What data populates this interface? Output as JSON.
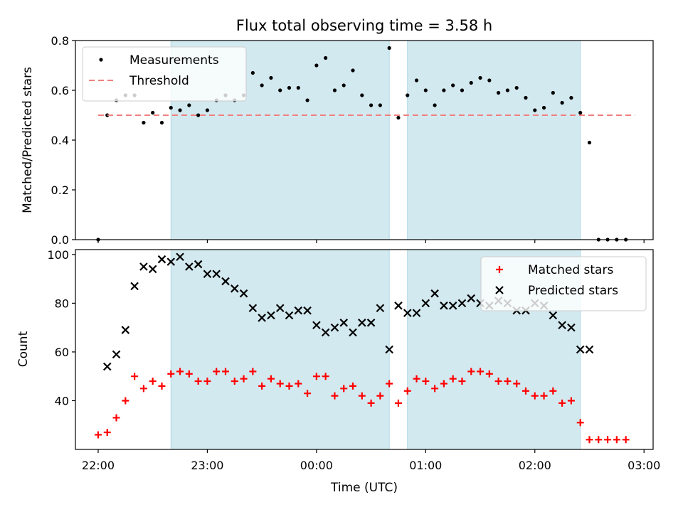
{
  "figure": {
    "title": "Flux total observing time = 3.58 h",
    "xlabel": "Time (UTC)",
    "xticks": [
      "22:00",
      "23:00",
      "00:00",
      "01:00",
      "02:00",
      "03:00"
    ]
  },
  "chart_data": [
    {
      "type": "scatter",
      "ylabel": "Matched/Predicted stars",
      "ylim": [
        0,
        0.8
      ],
      "yticks": [
        "0.0",
        "0.2",
        "0.4",
        "0.6",
        "0.8"
      ],
      "legend_placement": "top-left",
      "shaded_intervals": [
        [
          "22:40",
          "00:40"
        ],
        [
          "00:50",
          "02:25"
        ]
      ],
      "series": [
        {
          "name": "Measurements",
          "marker": "dot",
          "color": "#000000",
          "points": [
            [
              "22:00",
              0.0
            ],
            [
              "22:05",
              0.5
            ],
            [
              "22:10",
              0.56
            ],
            [
              "22:15",
              0.58
            ],
            [
              "22:20",
              0.58
            ],
            [
              "22:25",
              0.47
            ],
            [
              "22:30",
              0.51
            ],
            [
              "22:35",
              0.47
            ],
            [
              "22:40",
              0.53
            ],
            [
              "22:45",
              0.52
            ],
            [
              "22:50",
              0.54
            ],
            [
              "22:55",
              0.5
            ],
            [
              "23:00",
              0.52
            ],
            [
              "23:05",
              0.56
            ],
            [
              "23:10",
              0.58
            ],
            [
              "23:15",
              0.56
            ],
            [
              "23:20",
              0.58
            ],
            [
              "23:25",
              0.67
            ],
            [
              "23:30",
              0.62
            ],
            [
              "23:35",
              0.65
            ],
            [
              "23:40",
              0.6
            ],
            [
              "23:45",
              0.61
            ],
            [
              "23:50",
              0.61
            ],
            [
              "23:55",
              0.56
            ],
            [
              "00:00",
              0.7
            ],
            [
              "00:05",
              0.73
            ],
            [
              "00:10",
              0.6
            ],
            [
              "00:15",
              0.62
            ],
            [
              "00:20",
              0.68
            ],
            [
              "00:25",
              0.58
            ],
            [
              "00:30",
              0.54
            ],
            [
              "00:35",
              0.54
            ],
            [
              "00:40",
              0.77
            ],
            [
              "00:45",
              0.49
            ],
            [
              "00:50",
              0.58
            ],
            [
              "00:55",
              0.64
            ],
            [
              "01:00",
              0.6
            ],
            [
              "01:05",
              0.54
            ],
            [
              "01:10",
              0.6
            ],
            [
              "01:15",
              0.62
            ],
            [
              "01:20",
              0.6
            ],
            [
              "01:25",
              0.63
            ],
            [
              "01:30",
              0.65
            ],
            [
              "01:35",
              0.64
            ],
            [
              "01:40",
              0.59
            ],
            [
              "01:45",
              0.6
            ],
            [
              "01:50",
              0.61
            ],
            [
              "01:55",
              0.57
            ],
            [
              "02:00",
              0.52
            ],
            [
              "02:05",
              0.53
            ],
            [
              "02:10",
              0.59
            ],
            [
              "02:15",
              0.55
            ],
            [
              "02:20",
              0.57
            ],
            [
              "02:25",
              0.51
            ],
            [
              "02:30",
              0.39
            ],
            [
              "02:35",
              0.0
            ],
            [
              "02:40",
              0.0
            ],
            [
              "02:45",
              0.0
            ],
            [
              "02:50",
              0.0
            ]
          ]
        },
        {
          "name": "Threshold",
          "style": "dashed",
          "color": "#f08080",
          "value": 0.5,
          "x_range": [
            "22:00",
            "02:55"
          ]
        }
      ]
    },
    {
      "type": "scatter",
      "ylabel": "Count",
      "ylim": [
        20,
        102
      ],
      "yticks": [
        "40",
        "60",
        "80",
        "100"
      ],
      "legend_placement": "top-right",
      "shaded_intervals": [
        [
          "22:40",
          "00:40"
        ],
        [
          "00:50",
          "02:25"
        ]
      ],
      "series": [
        {
          "name": "Matched stars",
          "marker": "plus",
          "color": "#ff0000",
          "points": [
            [
              "22:00",
              26
            ],
            [
              "22:05",
              27
            ],
            [
              "22:10",
              33
            ],
            [
              "22:15",
              40
            ],
            [
              "22:20",
              50
            ],
            [
              "22:25",
              45
            ],
            [
              "22:30",
              48
            ],
            [
              "22:35",
              46
            ],
            [
              "22:40",
              51
            ],
            [
              "22:45",
              52
            ],
            [
              "22:50",
              51
            ],
            [
              "22:55",
              48
            ],
            [
              "23:00",
              48
            ],
            [
              "23:05",
              52
            ],
            [
              "23:10",
              52
            ],
            [
              "23:15",
              48
            ],
            [
              "23:20",
              49
            ],
            [
              "23:25",
              52
            ],
            [
              "23:30",
              46
            ],
            [
              "23:35",
              49
            ],
            [
              "23:40",
              47
            ],
            [
              "23:45",
              46
            ],
            [
              "23:50",
              47
            ],
            [
              "23:55",
              43
            ],
            [
              "00:00",
              50
            ],
            [
              "00:05",
              50
            ],
            [
              "00:10",
              42
            ],
            [
              "00:15",
              45
            ],
            [
              "00:20",
              46
            ],
            [
              "00:25",
              42
            ],
            [
              "00:30",
              39
            ],
            [
              "00:35",
              42
            ],
            [
              "00:40",
              47
            ],
            [
              "00:45",
              39
            ],
            [
              "00:50",
              44
            ],
            [
              "00:55",
              49
            ],
            [
              "01:00",
              48
            ],
            [
              "01:05",
              45
            ],
            [
              "01:10",
              47
            ],
            [
              "01:15",
              49
            ],
            [
              "01:20",
              48
            ],
            [
              "01:25",
              52
            ],
            [
              "01:30",
              52
            ],
            [
              "01:35",
              51
            ],
            [
              "01:40",
              48
            ],
            [
              "01:45",
              48
            ],
            [
              "01:50",
              47
            ],
            [
              "01:55",
              44
            ],
            [
              "02:00",
              42
            ],
            [
              "02:05",
              42
            ],
            [
              "02:10",
              44
            ],
            [
              "02:15",
              39
            ],
            [
              "02:20",
              40
            ],
            [
              "02:25",
              31
            ],
            [
              "02:30",
              24
            ],
            [
              "02:35",
              24
            ],
            [
              "02:40",
              24
            ],
            [
              "02:45",
              24
            ],
            [
              "02:50",
              24
            ]
          ]
        },
        {
          "name": "Predicted stars",
          "marker": "x",
          "color": "#000000",
          "points": [
            [
              "22:05",
              54
            ],
            [
              "22:10",
              59
            ],
            [
              "22:15",
              69
            ],
            [
              "22:20",
              87
            ],
            [
              "22:25",
              95
            ],
            [
              "22:30",
              94
            ],
            [
              "22:35",
              98
            ],
            [
              "22:40",
              97
            ],
            [
              "22:45",
              99
            ],
            [
              "22:50",
              95
            ],
            [
              "22:55",
              96
            ],
            [
              "23:00",
              92
            ],
            [
              "23:05",
              92
            ],
            [
              "23:10",
              89
            ],
            [
              "23:15",
              86
            ],
            [
              "23:20",
              84
            ],
            [
              "23:25",
              78
            ],
            [
              "23:30",
              74
            ],
            [
              "23:35",
              75
            ],
            [
              "23:40",
              78
            ],
            [
              "23:45",
              75
            ],
            [
              "23:50",
              77
            ],
            [
              "23:55",
              77
            ],
            [
              "00:00",
              71
            ],
            [
              "00:05",
              68
            ],
            [
              "00:10",
              70
            ],
            [
              "00:15",
              72
            ],
            [
              "00:20",
              68
            ],
            [
              "00:25",
              72
            ],
            [
              "00:30",
              72
            ],
            [
              "00:35",
              78
            ],
            [
              "00:40",
              61
            ],
            [
              "00:45",
              79
            ],
            [
              "00:50",
              76
            ],
            [
              "00:55",
              76
            ],
            [
              "01:00",
              80
            ],
            [
              "01:05",
              84
            ],
            [
              "01:10",
              79
            ],
            [
              "01:15",
              79
            ],
            [
              "01:20",
              80
            ],
            [
              "01:25",
              82
            ],
            [
              "01:30",
              80
            ],
            [
              "01:35",
              79
            ],
            [
              "01:40",
              81
            ],
            [
              "01:45",
              80
            ],
            [
              "01:50",
              77
            ],
            [
              "01:55",
              77
            ],
            [
              "02:00",
              80
            ],
            [
              "02:05",
              79
            ],
            [
              "02:10",
              75
            ],
            [
              "02:15",
              71
            ],
            [
              "02:20",
              70
            ],
            [
              "02:25",
              61
            ],
            [
              "02:30",
              61
            ]
          ]
        }
      ]
    }
  ],
  "colors": {
    "shade": "#d3e9f0",
    "shade_edge": "#add8e6",
    "axes": "#000000"
  }
}
